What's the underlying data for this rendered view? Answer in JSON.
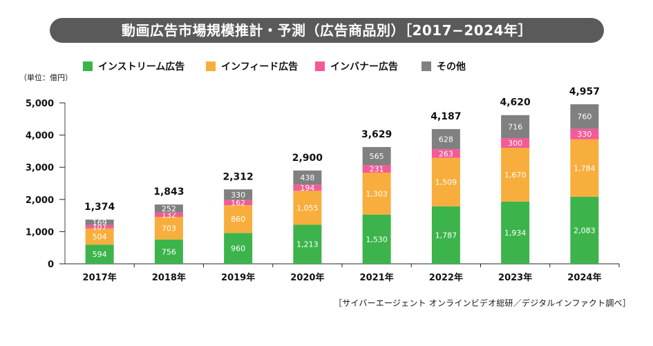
{
  "title": "動画広告市場規模推計・予測（広告商品別）［2017−2024年］",
  "unit_label": "（単位：億円）",
  "source": "［サイバーエージェント オンラインビデオ総研／デジタルインファクト調べ］",
  "legend": [
    {
      "label": "インストリーム広告",
      "color": "#3cb44b"
    },
    {
      "label": "インフィード広告",
      "color": "#f8ae3c"
    },
    {
      "label": "インバナー広告",
      "color": "#f45b96"
    },
    {
      "label": "その他",
      "color": "#808080"
    }
  ],
  "chart_data": {
    "type": "bar",
    "stacked": true,
    "title": "動画広告市場規模推計・予測（広告商品別）［2017−2024年］",
    "xlabel": "",
    "ylabel": "（単位：億円）",
    "ylim": [
      0,
      5000
    ],
    "yticks": [
      0,
      1000,
      2000,
      3000,
      4000,
      5000
    ],
    "ytick_labels": [
      "0",
      "1,000",
      "2,000",
      "3,000",
      "4,000",
      "5,000"
    ],
    "grid": false,
    "legend_position": "top",
    "categories": [
      "2017年",
      "2018年",
      "2019年",
      "2020年",
      "2021年",
      "2022年",
      "2023年",
      "2024年"
    ],
    "series": [
      {
        "name": "インストリーム広告",
        "color": "#3cb44b",
        "values": [
          594,
          756,
          960,
          1213,
          1530,
          1787,
          1934,
          2083
        ]
      },
      {
        "name": "インフィード広告",
        "color": "#f8ae3c",
        "values": [
          504,
          703,
          860,
          1055,
          1303,
          1509,
          1670,
          1784
        ]
      },
      {
        "name": "インバナー広告",
        "color": "#f45b96",
        "values": [
          107,
          132,
          162,
          194,
          231,
          263,
          300,
          330
        ]
      },
      {
        "name": "その他",
        "color": "#808080",
        "values": [
          169,
          252,
          330,
          438,
          565,
          628,
          716,
          760
        ]
      }
    ],
    "totals": [
      1374,
      1843,
      2312,
      2900,
      3629,
      4187,
      4620,
      4957
    ]
  }
}
